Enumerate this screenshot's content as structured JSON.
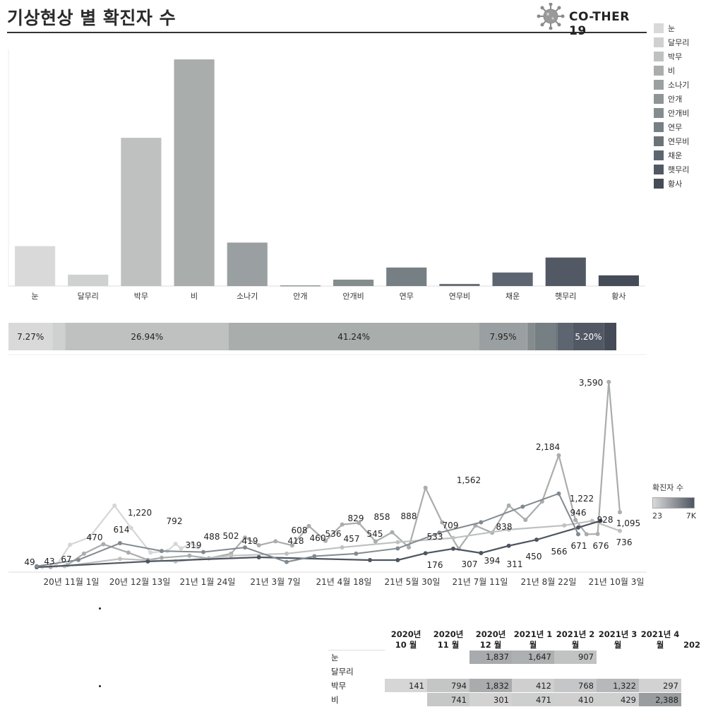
{
  "header": {
    "title": "기상현상 별 확진자 수",
    "brand": "CO-THER 19"
  },
  "legend": {
    "items": [
      {
        "label": "눈",
        "color": "#d9d9d9"
      },
      {
        "label": "달무리",
        "color": "#cfd0d0"
      },
      {
        "label": "박무",
        "color": "#bfc1c1"
      },
      {
        "label": "비",
        "color": "#a9adac"
      },
      {
        "label": "소나기",
        "color": "#9aa0a1"
      },
      {
        "label": "안개",
        "color": "#8e9597"
      },
      {
        "label": "안개비",
        "color": "#858c8e"
      },
      {
        "label": "연무",
        "color": "#767f83"
      },
      {
        "label": "연무비",
        "color": "#6a7378"
      },
      {
        "label": "채운",
        "color": "#5d6570"
      },
      {
        "label": "햇무리",
        "color": "#525965"
      },
      {
        "label": "황사",
        "color": "#454c58"
      }
    ]
  },
  "chart_data": [
    {
      "type": "bar",
      "categories": [
        "눈",
        "달무리",
        "박무",
        "비",
        "소나기",
        "안개",
        "안개비",
        "연무",
        "연무비",
        "채운",
        "햇무리",
        "황사"
      ],
      "values": [
        5600,
        1600,
        20800,
        31800,
        6100,
        100,
        900,
        2600,
        300,
        1900,
        4000,
        1500
      ]
    },
    {
      "type": "bar",
      "orientation": "stacked-horizontal",
      "categories": [
        "눈",
        "달무리",
        "박무",
        "비",
        "소나기",
        "안개",
        "안개비",
        "연무",
        "연무비",
        "채운",
        "햇무리",
        "황사"
      ],
      "values": [
        7.27,
        2.1,
        26.94,
        41.24,
        7.95,
        0.1,
        1.2,
        3.4,
        0.3,
        2.5,
        5.2,
        2.0
      ],
      "labels": [
        "7.27%",
        "",
        "26.94%",
        "41.24%",
        "7.95%",
        "",
        "",
        "",
        "",
        "",
        "5.20%",
        ""
      ]
    },
    {
      "type": "line",
      "x_ticks": [
        "20년 11월 1일",
        "20년 12월 13일",
        "21년 1월 24일",
        "21년 3월 7일",
        "21년 4월 18일",
        "21년 5월 30일",
        "21년 7월 11일",
        "21년 8월 22일",
        "21년 10월 3일"
      ],
      "point_labels": [
        "49",
        "43",
        "67",
        "470",
        "614",
        "1,220",
        "792",
        "319",
        "488",
        "502",
        "419",
        "418",
        "608",
        "460",
        "536",
        "457",
        "829",
        "545",
        "858",
        "888",
        "533",
        "709",
        "176",
        "1,562",
        "307",
        "394",
        "838",
        "311",
        "450",
        "2,184",
        "566",
        "946",
        "1,222",
        "671",
        "676",
        "928",
        "3,590",
        "1,095",
        "736"
      ],
      "series": [
        {
          "values": [
            [
              0,
              49
            ],
            [
              2,
              43
            ],
            [
              7,
              67
            ],
            [
              12,
              470
            ],
            [
              19,
              614
            ],
            [
              28,
              1220
            ],
            [
              34,
              792
            ],
            [
              41,
              319
            ],
            [
              47,
              350
            ],
            [
              50,
              488
            ],
            [
              52,
              400
            ],
            [
              56,
              502
            ],
            [
              58,
              419
            ]
          ]
        },
        {
          "values": [
            [
              0,
              49
            ],
            [
              5,
              43
            ],
            [
              11,
              80
            ],
            [
              17,
              300
            ],
            [
              24,
              480
            ],
            [
              33,
              320
            ],
            [
              40,
              180
            ],
            [
              45,
              220
            ],
            [
              55,
              260
            ],
            [
              62,
              210
            ],
            [
              70,
              300
            ],
            [
              75,
              608
            ],
            [
              80,
              460
            ],
            [
              86,
              536
            ],
            [
              92,
              457
            ],
            [
              98,
              829
            ],
            [
              104,
              545
            ],
            [
              110,
              858
            ],
            [
              116,
              888
            ],
            [
              122,
              533
            ],
            [
              128,
              709
            ],
            [
              134,
              420
            ],
            [
              140,
              1562
            ],
            [
              146,
              900
            ],
            [
              152,
              394
            ],
            [
              158,
              838
            ],
            [
              164,
              700
            ],
            [
              170,
              1222
            ],
            [
              176,
              946
            ],
            [
              182,
              1300
            ],
            [
              188,
              2184
            ],
            [
              194,
              946
            ],
            [
              198,
              671
            ],
            [
              202,
              676
            ],
            [
              206,
              3590
            ],
            [
              210,
              1095
            ]
          ]
        },
        {
          "values": [
            [
              0,
              49
            ],
            [
              10,
              60
            ],
            [
              30,
              200
            ],
            [
              50,
              150
            ],
            [
              70,
              260
            ],
            [
              90,
              300
            ],
            [
              110,
              420
            ],
            [
              130,
              520
            ],
            [
              150,
              600
            ],
            [
              170,
              760
            ],
            [
              190,
              840
            ],
            [
              200,
              928
            ],
            [
              210,
              736
            ]
          ]
        },
        {
          "values": [
            [
              0,
              40
            ],
            [
              40,
              150
            ],
            [
              80,
              230
            ],
            [
              120,
              176
            ],
            [
              130,
              176
            ],
            [
              140,
              307
            ],
            [
              150,
              394
            ],
            [
              160,
              311
            ],
            [
              170,
              450
            ],
            [
              180,
              566
            ],
            [
              195,
              800
            ],
            [
              203,
              928
            ]
          ]
        },
        {
          "values": [
            [
              0,
              60
            ],
            [
              15,
              180
            ],
            [
              30,
              500
            ],
            [
              45,
              350
            ],
            [
              60,
              330
            ],
            [
              75,
              418
            ],
            [
              90,
              140
            ],
            [
              100,
              250
            ],
            [
              115,
              300
            ],
            [
              130,
              400
            ],
            [
              145,
              700
            ],
            [
              160,
              900
            ],
            [
              175,
              1200
            ],
            [
              188,
              1450
            ],
            [
              195,
              671
            ]
          ]
        }
      ]
    },
    {
      "type": "heatmap",
      "columns": [
        "2020년 10 월",
        "2020년 11 월",
        "2020년 12 월",
        "2021년 1 월",
        "2021년 2 월",
        "2021년 3 월",
        "2021년 4 월",
        "202"
      ],
      "rows": [
        {
          "label": "눈",
          "values": [
            "",
            "",
            "1,837",
            "1,647",
            "907",
            "",
            "",
            ""
          ]
        },
        {
          "label": "달무리",
          "values": [
            "",
            "",
            "",
            "",
            "",
            "",
            "",
            ""
          ]
        },
        {
          "label": "박무",
          "values": [
            "141",
            "794",
            "1,832",
            "412",
            "768",
            "1,322",
            "297",
            ""
          ]
        },
        {
          "label": "비",
          "values": [
            "",
            "741",
            "301",
            "471",
            "410",
            "429",
            "2,388",
            ""
          ]
        }
      ]
    }
  ],
  "gradient_legend": {
    "title": "확진자 수",
    "min": "23",
    "max": "7K",
    "color_min": "#d9d9d9",
    "color_max": "#4e5560"
  }
}
